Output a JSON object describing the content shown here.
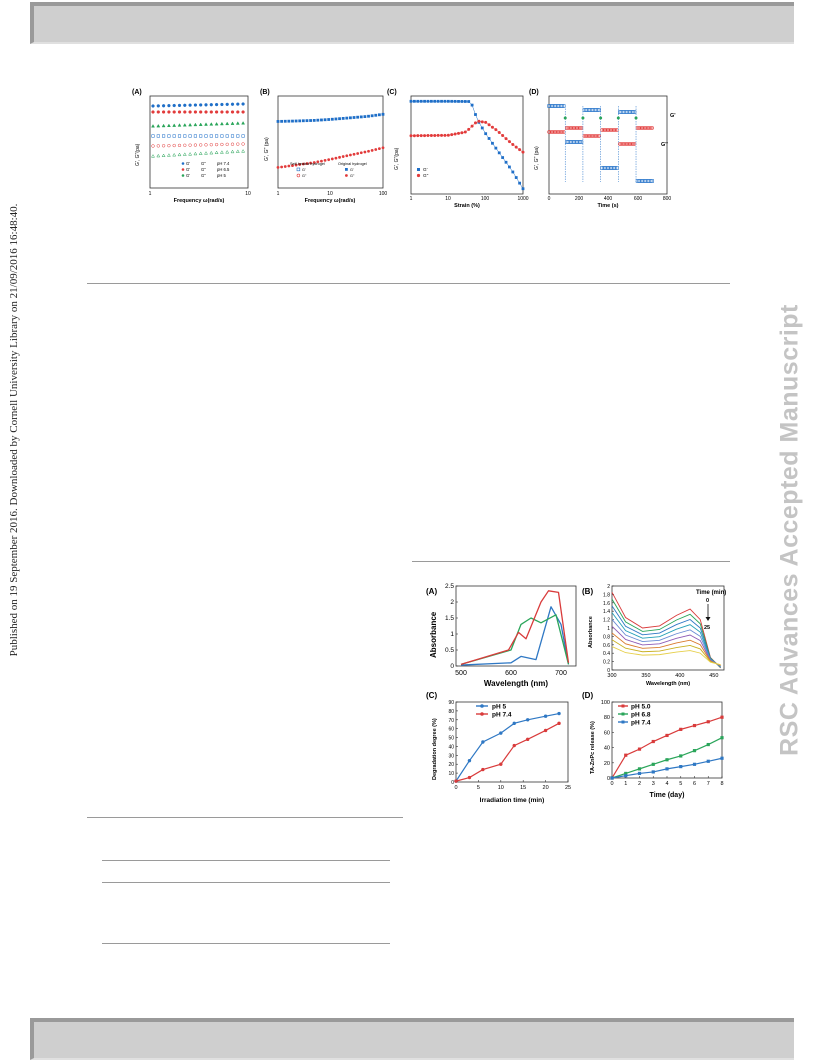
{
  "sidebar_left": "Published on 19 September 2016. Downloaded by Cornell University Library on 21/09/2016 16:48:40.",
  "sidebar_right": "RSC Advances Accepted Manuscript",
  "fig1": {
    "A": {
      "tag": "(A)",
      "ylabel": "G', G''(pa)",
      "xlabel": "Frequency ω(rad/s)",
      "xticks": [
        "1",
        "10"
      ],
      "legend": [
        {
          "g1": "G'",
          "g2": "G''",
          "label": "pH 7.4",
          "color": "#1f6fc8"
        },
        {
          "g1": "G'",
          "g2": "G''",
          "label": "pH 6.5",
          "color": "#e23b3b"
        },
        {
          "g1": "G'",
          "g2": "G''",
          "label": "pH 5",
          "color": "#2aa55a"
        }
      ]
    },
    "B": {
      "tag": "(B)",
      "ylabel": "G', G'' (pa)",
      "xlabel": "Frequency ω(rad/s)",
      "xticks": [
        "1",
        "10",
        "100"
      ],
      "legend_head1": "Self-healed hydrogel",
      "legend_head2": "Original hydrogel",
      "legend": [
        {
          "label": "G'",
          "color": "#1f6fc8"
        },
        {
          "label": "G''",
          "color": "#e23b3b"
        }
      ]
    },
    "C": {
      "tag": "(C)",
      "ylabel": "G', G''(pa)",
      "xlabel": "Strain (%)",
      "xticks": [
        "1",
        "10",
        "100",
        "1000"
      ],
      "legend": [
        {
          "label": "G'",
          "color": "#1f6fc8"
        },
        {
          "label": "G''",
          "color": "#e23b3b"
        }
      ]
    },
    "D": {
      "tag": "(D)",
      "ylabel": "G', G'' (pa)",
      "xlabel": "Time (s)",
      "xticks": [
        "0",
        "200",
        "400",
        "600",
        "800"
      ],
      "series_labels": [
        "G'",
        "G''"
      ]
    }
  },
  "fig2": {
    "A": {
      "tag": "(A)",
      "ylabel": "Absorbance",
      "xlabel": "Wavelength (nm)",
      "xticks": [
        "500",
        "600",
        "700"
      ],
      "yticks": [
        "0",
        "0.5",
        "1",
        "1.5",
        "2",
        "2.5"
      ]
    },
    "B": {
      "tag": "(B)",
      "ylabel": "Absorbance",
      "xlabel": "Wavelength (nm)",
      "xticks": [
        "300",
        "350",
        "400",
        "450"
      ],
      "yticks": [
        "0",
        "0.2",
        "0.4",
        "0.6",
        "0.8",
        "1",
        "1.2",
        "1.4",
        "1.6",
        "1.8",
        "2"
      ],
      "annotation_title": "Time (min)",
      "annotation_start": "0",
      "annotation_end": "25"
    },
    "C": {
      "tag": "(C)",
      "ylabel": "Degradation degree (%)",
      "xlabel": "Irradiation time (min)",
      "xticks": [
        "0",
        "5",
        "10",
        "15",
        "20",
        "25"
      ],
      "yticks": [
        "0",
        "10",
        "20",
        "30",
        "40",
        "50",
        "60",
        "70",
        "80",
        "90"
      ],
      "legend": [
        {
          "label": "pH 5",
          "color": "#2f78c4"
        },
        {
          "label": "pH 7.4",
          "color": "#d93b3b"
        }
      ]
    },
    "D": {
      "tag": "(D)",
      "ylabel": "TA-ZnPc release (%)",
      "xlabel": "Time (day)",
      "xticks": [
        "0",
        "1",
        "2",
        "3",
        "4",
        "5",
        "6",
        "7",
        "8"
      ],
      "yticks": [
        "0",
        "20",
        "40",
        "60",
        "80",
        "100"
      ],
      "legend": [
        {
          "label": "pH 5.0",
          "color": "#d93b3b"
        },
        {
          "label": "pH 6.8",
          "color": "#2aa55a"
        },
        {
          "label": "pH 7.4",
          "color": "#2f78c4"
        }
      ]
    }
  },
  "chart_data": [
    {
      "panel": "Fig1-B",
      "type": "scatter",
      "x_scale": "log",
      "y_scale": "log",
      "xlim": [
        1,
        100
      ],
      "ylim": [
        100,
        10000
      ],
      "series": [
        {
          "name": "G'",
          "x": [
            1,
            2,
            5,
            10,
            20,
            50,
            100
          ],
          "y": [
            2800,
            2850,
            2950,
            3100,
            3300,
            3600,
            4000
          ]
        },
        {
          "name": "G''",
          "x": [
            1,
            2,
            5,
            10,
            20,
            50,
            100
          ],
          "y": [
            280,
            310,
            360,
            420,
            500,
            620,
            750
          ]
        }
      ]
    },
    {
      "panel": "Fig1-C",
      "type": "scatter",
      "x_scale": "log",
      "y_scale": "log",
      "xlim": [
        1,
        1000
      ],
      "series": [
        {
          "name": "G'",
          "x": [
            1,
            10,
            40,
            60,
            100,
            200,
            500,
            1000
          ],
          "y": [
            10000,
            10000,
            9800,
            2000,
            600,
            150,
            25,
            5
          ]
        },
        {
          "name": "G''",
          "x": [
            1,
            10,
            30,
            60,
            100,
            200,
            500,
            1000
          ],
          "y": [
            500,
            520,
            700,
            1800,
            1600,
            800,
            250,
            120
          ]
        }
      ]
    },
    {
      "panel": "Fig2-A",
      "type": "line",
      "xlim": [
        500,
        730
      ],
      "ylim": [
        0,
        2.5
      ],
      "series": [
        {
          "color": "#2f78c4",
          "x": [
            500,
            600,
            620,
            650,
            670,
            680,
            700,
            715
          ],
          "y": [
            0.03,
            0.1,
            0.3,
            0.2,
            1.3,
            1.85,
            1.3,
            0.05
          ]
        },
        {
          "color": "#2aa55a",
          "x": [
            500,
            600,
            620,
            640,
            660,
            690,
            715
          ],
          "y": [
            0.05,
            0.5,
            1.3,
            1.5,
            1.35,
            1.6,
            0.05
          ]
        },
        {
          "color": "#d93b3b",
          "x": [
            500,
            595,
            615,
            630,
            660,
            675,
            695,
            715
          ],
          "y": [
            0.05,
            0.5,
            1.05,
            0.85,
            2.0,
            2.35,
            2.3,
            0.1
          ]
        }
      ]
    },
    {
      "panel": "Fig2-C",
      "type": "line",
      "xlabel": "Irradiation time (min)",
      "ylabel": "Degradation degree (%)",
      "xlim": [
        0,
        25
      ],
      "ylim": [
        0,
        90
      ],
      "series": [
        {
          "name": "pH 5",
          "x": [
            0,
            3,
            6,
            10,
            13,
            16,
            20,
            23
          ],
          "y": [
            1,
            24,
            45,
            55,
            66,
            70,
            74,
            77
          ]
        },
        {
          "name": "pH 7.4",
          "x": [
            0,
            3,
            6,
            10,
            13,
            16,
            20,
            23
          ],
          "y": [
            1,
            5,
            14,
            20,
            41,
            48,
            58,
            66
          ]
        }
      ]
    },
    {
      "panel": "Fig2-D",
      "type": "line",
      "xlabel": "Time (day)",
      "ylabel": "TA-ZnPc release (%)",
      "xlim": [
        0,
        8
      ],
      "ylim": [
        0,
        100
      ],
      "series": [
        {
          "name": "pH 5.0",
          "x": [
            0,
            1,
            2,
            3,
            4,
            5,
            6,
            7,
            8
          ],
          "y": [
            0,
            30,
            38,
            48,
            56,
            64,
            69,
            74,
            80
          ]
        },
        {
          "name": "pH 6.8",
          "x": [
            0,
            1,
            2,
            3,
            4,
            5,
            6,
            7,
            8
          ],
          "y": [
            0,
            6,
            12,
            18,
            24,
            29,
            36,
            44,
            53
          ]
        },
        {
          "name": "pH 7.4",
          "x": [
            0,
            1,
            2,
            3,
            4,
            5,
            6,
            7,
            8
          ],
          "y": [
            0,
            3,
            6,
            8,
            12,
            15,
            18,
            22,
            26
          ]
        }
      ]
    }
  ]
}
